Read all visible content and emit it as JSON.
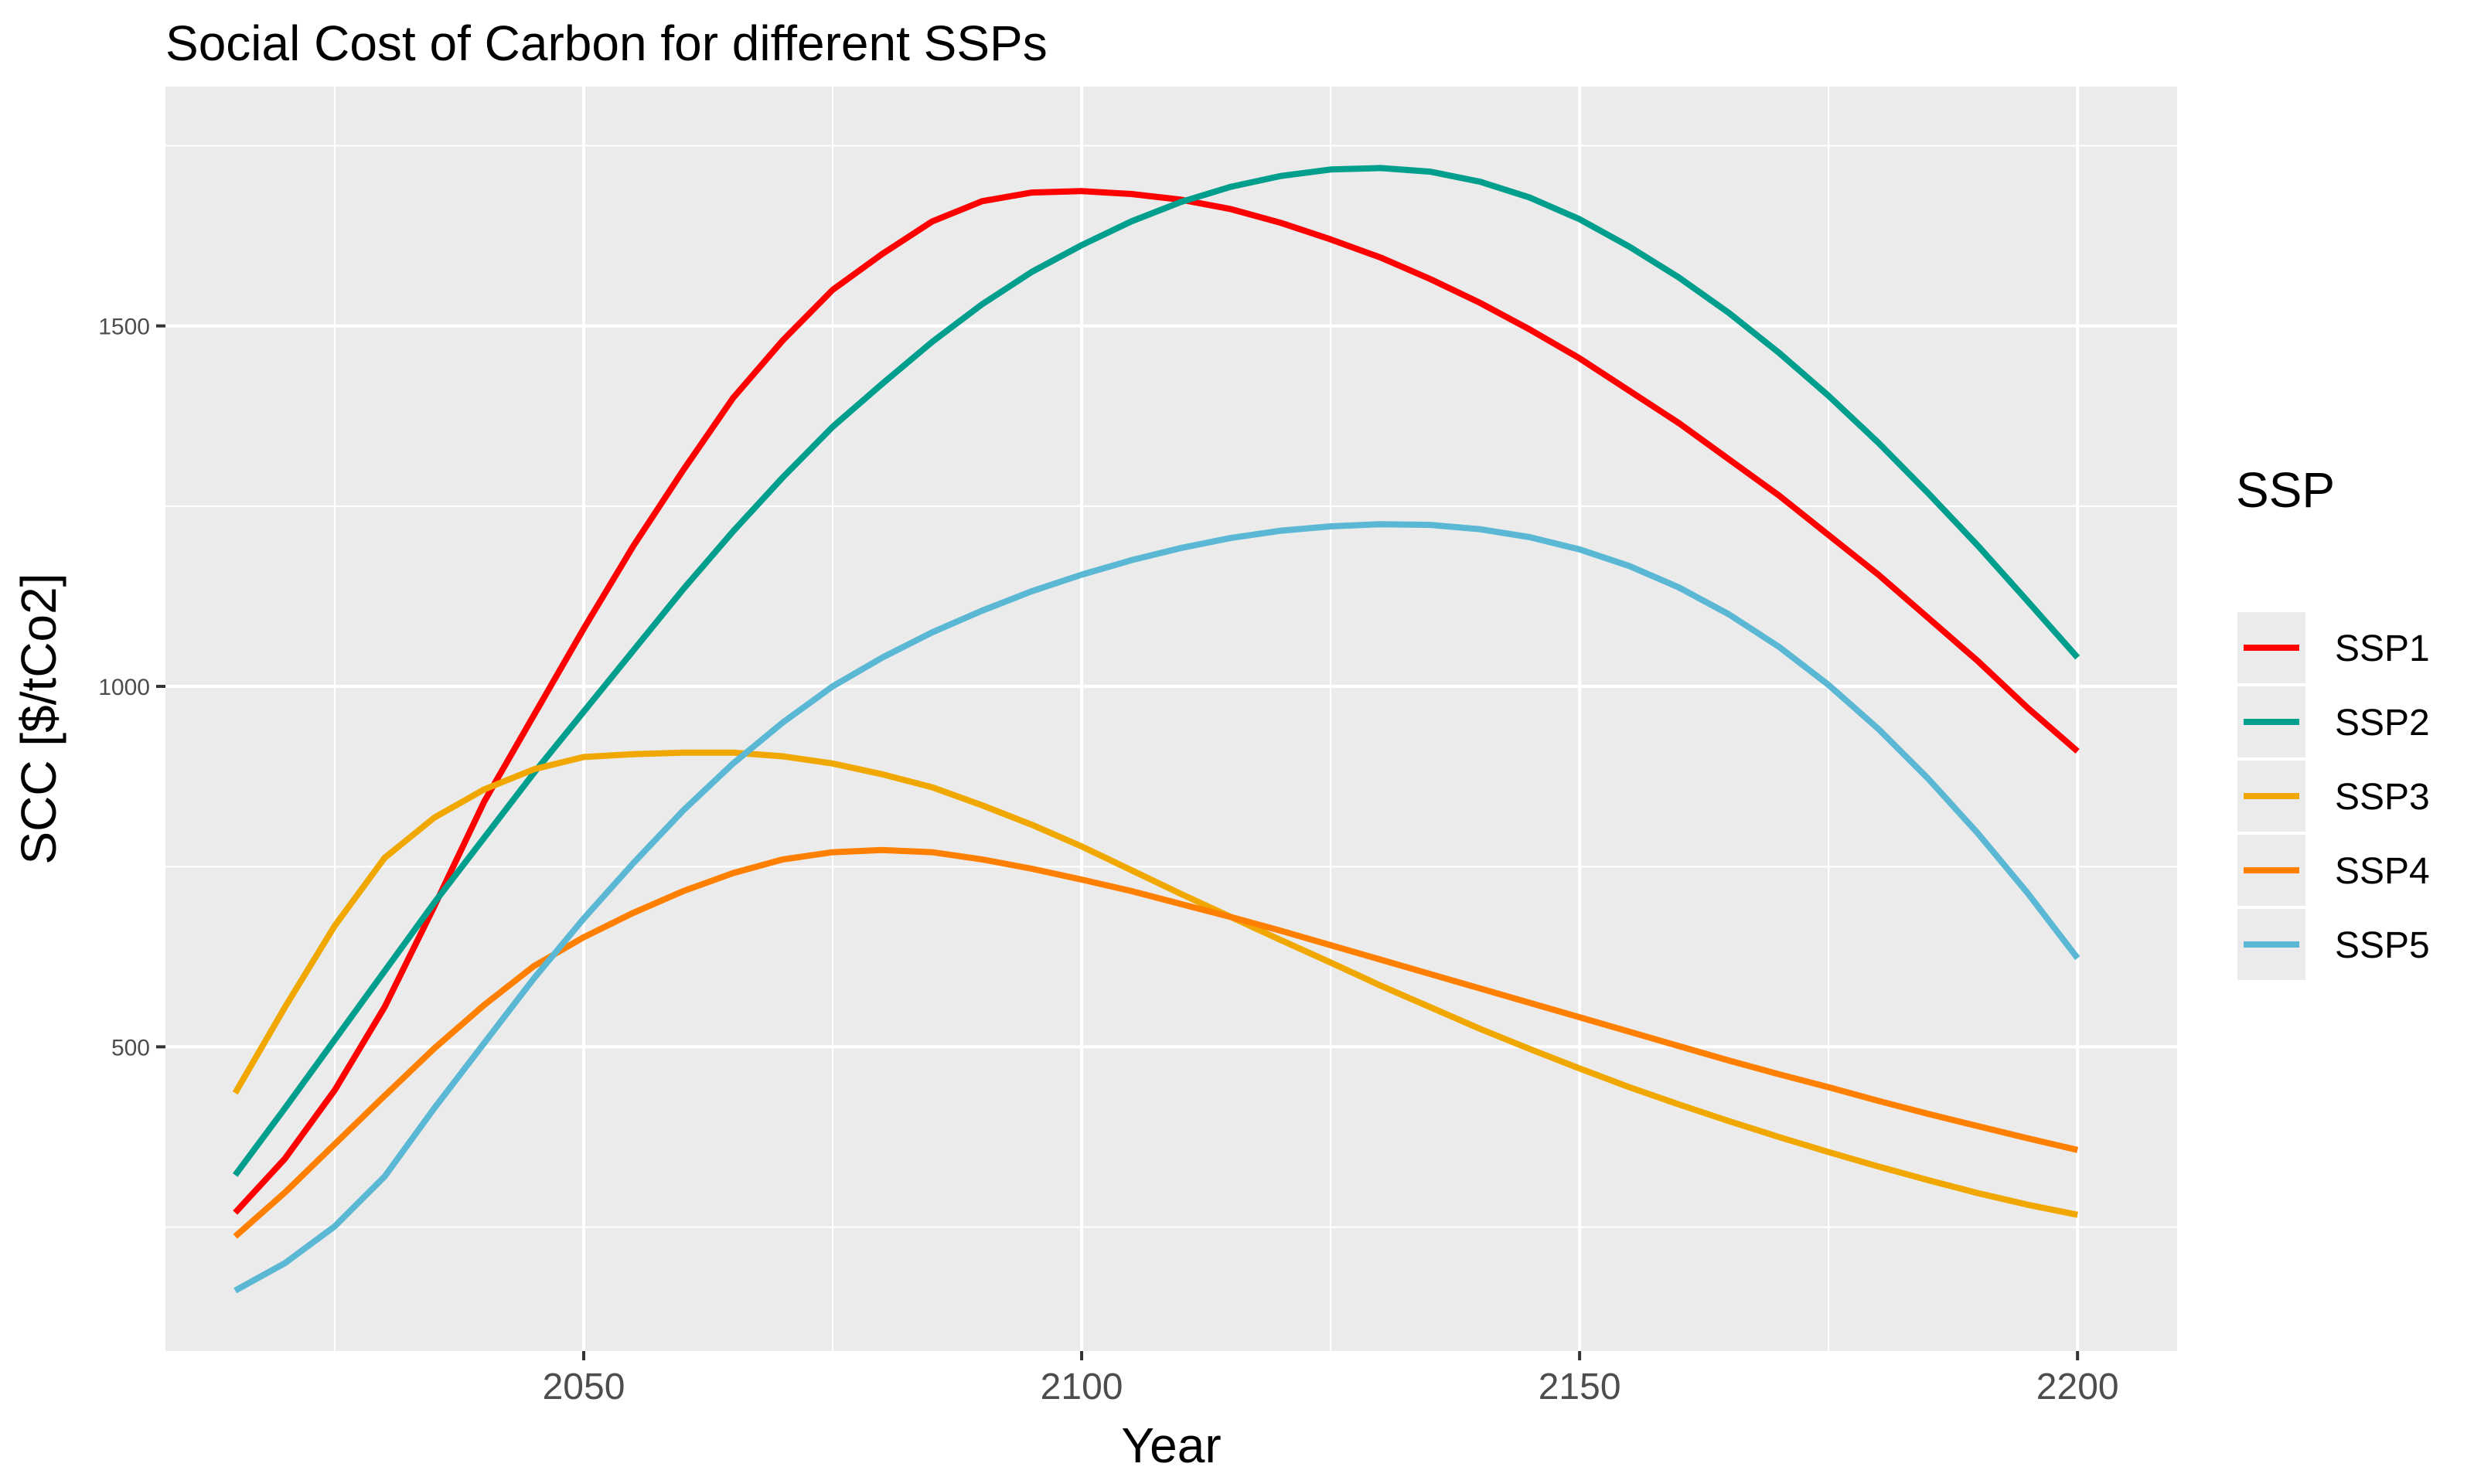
{
  "chart_data": {
    "type": "line",
    "title": "Social Cost of Carbon for different SSPs",
    "xlabel": "Year",
    "ylabel": "SCC [$/tCo2]",
    "xlim": [
      2008,
      2210
    ],
    "ylim": [
      78,
      1832
    ],
    "x_ticks": [
      2050,
      2100,
      2150,
      2200
    ],
    "y_ticks": [
      500,
      1000,
      1500
    ],
    "grid": true,
    "legend": {
      "title": "SSP",
      "position": "right"
    },
    "x": [
      2015,
      2020,
      2025,
      2030,
      2035,
      2040,
      2045,
      2050,
      2055,
      2060,
      2065,
      2070,
      2075,
      2080,
      2085,
      2090,
      2095,
      2100,
      2105,
      2110,
      2115,
      2120,
      2125,
      2130,
      2135,
      2140,
      2145,
      2150,
      2155,
      2160,
      2165,
      2170,
      2175,
      2180,
      2185,
      2190,
      2195,
      2200
    ],
    "series": [
      {
        "name": "SSP1",
        "color": "#ff0000",
        "values": [
          270,
          345,
          440,
          555,
          695,
          840,
          960,
          1080,
          1195,
          1300,
          1400,
          1480,
          1550,
          1600,
          1645,
          1673,
          1685,
          1687,
          1683,
          1675,
          1662,
          1643,
          1620,
          1595,
          1565,
          1532,
          1495,
          1455,
          1410,
          1365,
          1315,
          1265,
          1210,
          1155,
          1095,
          1035,
          970,
          910
        ]
      },
      {
        "name": "SSP2",
        "color": "#009e8c",
        "values": [
          322,
          415,
          510,
          605,
          700,
          790,
          880,
          965,
          1050,
          1135,
          1215,
          1290,
          1360,
          1420,
          1478,
          1530,
          1575,
          1612,
          1645,
          1672,
          1693,
          1708,
          1717,
          1719,
          1714,
          1700,
          1678,
          1648,
          1610,
          1567,
          1518,
          1463,
          1403,
          1338,
          1268,
          1195,
          1118,
          1040
        ]
      },
      {
        "name": "SSP3",
        "color": "#f0a800",
        "values": [
          436,
          555,
          668,
          762,
          818,
          857,
          885,
          902,
          906,
          908,
          908,
          903,
          893,
          878,
          860,
          835,
          808,
          778,
          745,
          712,
          680,
          648,
          617,
          585,
          555,
          525,
          497,
          470,
          444,
          420,
          397,
          375,
          354,
          334,
          315,
          297,
          281,
          267
        ]
      },
      {
        "name": "SSP4",
        "color": "#ff8000",
        "values": [
          237,
          298,
          365,
          432,
          498,
          558,
          612,
          652,
          686,
          716,
          741,
          760,
          770,
          773,
          770,
          760,
          747,
          732,
          716,
          698,
          680,
          661,
          641,
          621,
          601,
          581,
          561,
          541,
          521,
          501,
          481,
          462,
          444,
          425,
          407,
          390,
          373,
          357
        ]
      },
      {
        "name": "SSP5",
        "color": "#5ab8d4",
        "values": [
          162,
          200,
          251,
          320,
          415,
          505,
          595,
          678,
          755,
          828,
          893,
          950,
          1000,
          1040,
          1075,
          1105,
          1132,
          1155,
          1175,
          1192,
          1206,
          1216,
          1222,
          1225,
          1224,
          1218,
          1207,
          1190,
          1167,
          1137,
          1100,
          1055,
          1002,
          941,
          872,
          796,
          713,
          623
        ]
      }
    ]
  }
}
